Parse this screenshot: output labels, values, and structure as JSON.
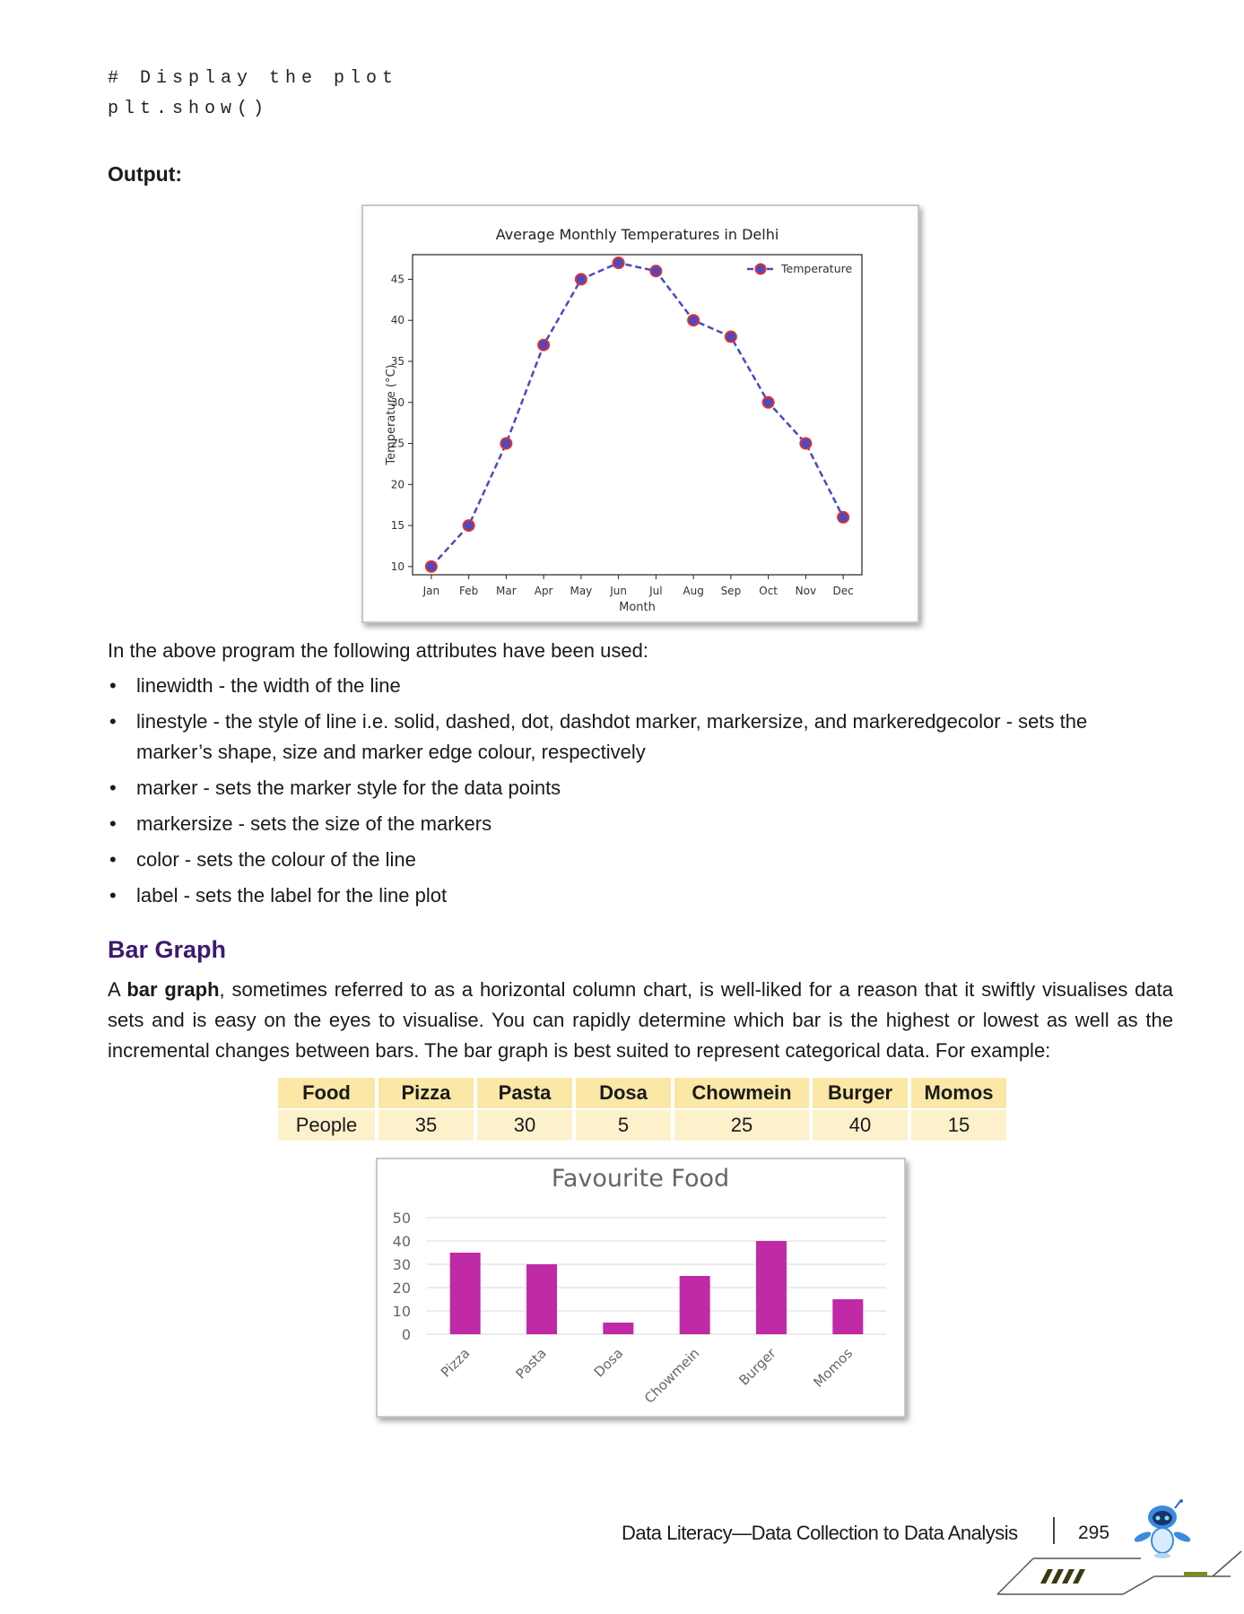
{
  "code_lines": [
    "# Display the plot",
    "plt.show()"
  ],
  "output_label": "Output:",
  "line_chart": {
    "type": "line",
    "title": "Average Monthly Temperatures in Delhi",
    "xlabel": "Month",
    "ylabel": "Temperature (°C)",
    "legend": "Temperature",
    "legend_position": "top-right",
    "categories": [
      "Jan",
      "Feb",
      "Mar",
      "Apr",
      "May",
      "Jun",
      "Jul",
      "Aug",
      "Sep",
      "Oct",
      "Nov",
      "Dec"
    ],
    "values": [
      10,
      15,
      25,
      37,
      45,
      47,
      46,
      40,
      38,
      30,
      25,
      16
    ],
    "yticks": [
      10,
      15,
      20,
      25,
      30,
      35,
      40,
      45
    ],
    "ylim": [
      9,
      48
    ],
    "line_color": "#4a4ac4",
    "marker_color": "#e03030",
    "grid": false
  },
  "intro_text": "In the above program the following attributes have been used:",
  "attributes": [
    "linewidth - the width of the line",
    "linestyle - the style of line i.e. solid, dashed, dot, dashdot marker, markersize, and markeredgecolor - sets the marker’s shape, size and marker edge colour, respectively",
    "marker - sets the marker style for the data points",
    "markersize - sets the size of the markers",
    "color - sets the colour of the line",
    "label - sets the label for the line plot"
  ],
  "section_title": "Bar Graph",
  "paragraph": {
    "pre": "A ",
    "bold": "bar graph",
    "post": ", sometimes referred to as a horizontal column chart, is well-liked for a reason that it swiftly visualises data sets and is easy on the eyes to visualise. You can rapidly determine which bar is the highest or lowest as well as the incremental changes between bars. The bar graph is best suited to represent categorical data. For example:"
  },
  "food_table": {
    "header": [
      "Food",
      "Pizza",
      "Pasta",
      "Dosa",
      "Chowmein",
      "Burger",
      "Momos"
    ],
    "row": [
      "People",
      "35",
      "30",
      "5",
      "25",
      "40",
      "15"
    ]
  },
  "bar_chart": {
    "type": "bar",
    "title": "Favourite Food",
    "categories": [
      "Pizza",
      "Pasta",
      "Dosa",
      "Chowmein",
      "Burger",
      "Momos"
    ],
    "values": [
      35,
      30,
      5,
      25,
      40,
      15
    ],
    "yticks": [
      0,
      10,
      20,
      30,
      40,
      50
    ],
    "ylim": [
      0,
      50
    ],
    "bar_color": "#c02aa6",
    "grid": true
  },
  "footer": {
    "text": "Data Literacy—Data Collection to Data Analysis",
    "page": "295",
    "accent": "#7a8c2a"
  }
}
